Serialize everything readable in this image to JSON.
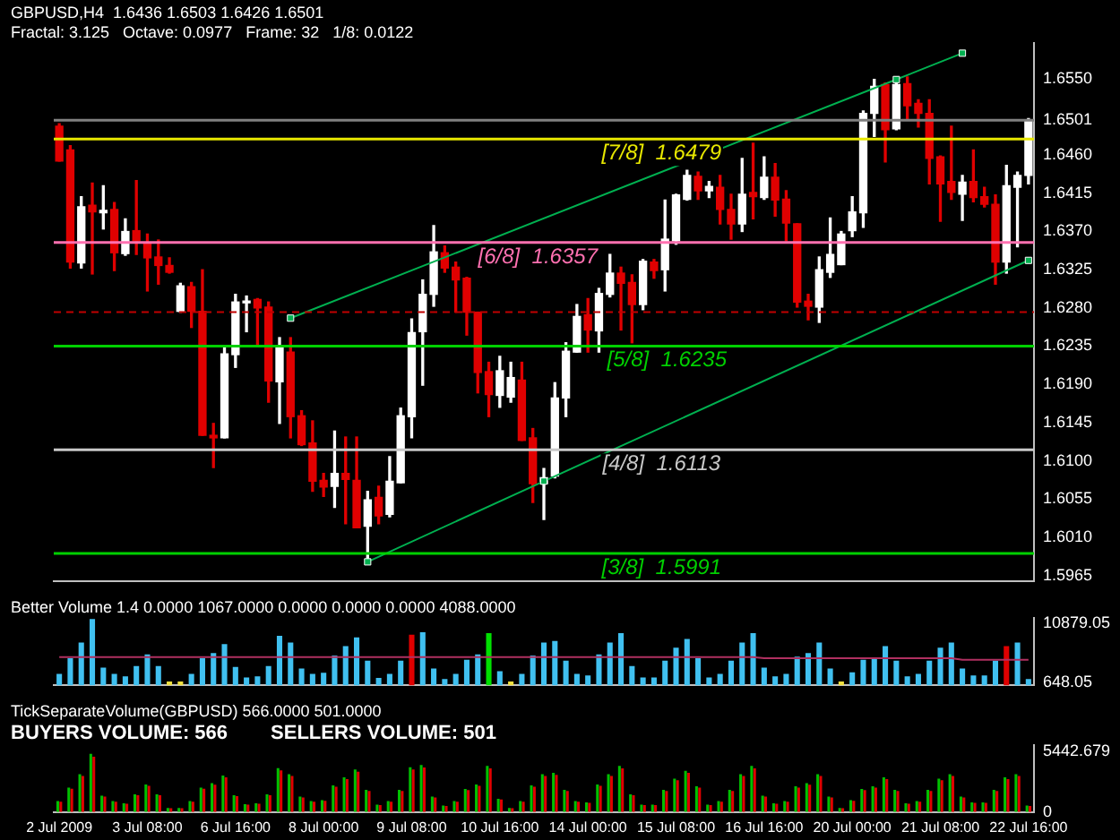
{
  "chart_data": [
    {
      "type": "candlestick",
      "title": "GBPUSD,H4  1.6436 1.6503 1.6426 1.6501",
      "subtitle": "Fractal: 3.125   Octave: 0.0977   Frame: 32   1/8: 0.0122",
      "ohlc": [
        [
          1.6494,
          1.6497,
          1.6453,
          1.6453
        ],
        [
          1.6466,
          1.6471,
          1.6327,
          1.6334
        ],
        [
          1.6333,
          1.6411,
          1.6327,
          1.6399
        ],
        [
          1.6401,
          1.6427,
          1.632,
          1.6393
        ],
        [
          1.6392,
          1.6424,
          1.6373,
          1.6395
        ],
        [
          1.6396,
          1.6404,
          1.6324,
          1.6345
        ],
        [
          1.6344,
          1.6385,
          1.6342,
          1.637
        ],
        [
          1.6371,
          1.643,
          1.6343,
          1.6359
        ],
        [
          1.6357,
          1.6367,
          1.63,
          1.6339
        ],
        [
          1.634,
          1.636,
          1.6308,
          1.633
        ],
        [
          1.633,
          1.6339,
          1.6321,
          1.6322
        ],
        [
          1.6276,
          1.6309,
          1.6275,
          1.6306
        ],
        [
          1.6305,
          1.631,
          1.6257,
          1.6276
        ],
        [
          1.6276,
          1.6325,
          1.613,
          1.613
        ],
        [
          1.613,
          1.6144,
          1.6092,
          1.6127
        ],
        [
          1.6127,
          1.6235,
          1.6127,
          1.6226
        ],
        [
          1.6225,
          1.6296,
          1.621,
          1.6287
        ],
        [
          1.6286,
          1.6294,
          1.6252,
          1.6288
        ],
        [
          1.629,
          1.6291,
          1.6236,
          1.628
        ],
        [
          1.6281,
          1.6287,
          1.6169,
          1.6194
        ],
        [
          1.6193,
          1.6245,
          1.6144,
          1.6235
        ],
        [
          1.6228,
          1.6245,
          1.6127,
          1.6152
        ],
        [
          1.6153,
          1.6159,
          1.6118,
          1.6119
        ],
        [
          1.6121,
          1.6147,
          1.6064,
          1.6076
        ],
        [
          1.6077,
          1.6085,
          1.6058,
          1.6069
        ],
        [
          1.607,
          1.6135,
          1.6045,
          1.6085
        ],
        [
          1.6085,
          1.6128,
          1.6026,
          1.6078
        ],
        [
          1.6077,
          1.6128,
          1.6021,
          1.6021
        ],
        [
          1.6023,
          1.6064,
          1.5981,
          1.6054
        ],
        [
          1.6057,
          1.607,
          1.6026,
          1.6035
        ],
        [
          1.6037,
          1.6105,
          1.6034,
          1.6076
        ],
        [
          1.6074,
          1.6162,
          1.6074,
          1.6153
        ],
        [
          1.6152,
          1.6267,
          1.6127,
          1.6251
        ],
        [
          1.6252,
          1.6313,
          1.6189,
          1.6296
        ],
        [
          1.6296,
          1.6377,
          1.6282,
          1.6346
        ],
        [
          1.6345,
          1.6353,
          1.6322,
          1.6327
        ],
        [
          1.6328,
          1.6334,
          1.6275,
          1.6313
        ],
        [
          1.6315,
          1.6316,
          1.6248,
          1.6275
        ],
        [
          1.6275,
          1.6275,
          1.618,
          1.6204
        ],
        [
          1.6205,
          1.6216,
          1.6152,
          1.6178
        ],
        [
          1.6177,
          1.6223,
          1.6163,
          1.6206
        ],
        [
          1.6175,
          1.6216,
          1.6169,
          1.6198
        ],
        [
          1.6195,
          1.6216,
          1.6124,
          1.6124
        ],
        [
          1.6127,
          1.6138,
          1.6051,
          1.6073
        ],
        [
          1.6073,
          1.6091,
          1.6031,
          1.608
        ],
        [
          1.6082,
          1.6192,
          1.608,
          1.6174
        ],
        [
          1.6174,
          1.6239,
          1.6152,
          1.6229
        ],
        [
          1.6228,
          1.6284,
          1.6228,
          1.627
        ],
        [
          1.6272,
          1.6291,
          1.6228,
          1.6254
        ],
        [
          1.6253,
          1.6303,
          1.6228,
          1.6297
        ],
        [
          1.6296,
          1.6343,
          1.6293,
          1.6321
        ],
        [
          1.6321,
          1.6328,
          1.6254,
          1.6309
        ],
        [
          1.631,
          1.6319,
          1.6239,
          1.6284
        ],
        [
          1.6284,
          1.6337,
          1.6278,
          1.6335
        ],
        [
          1.6334,
          1.6337,
          1.6315,
          1.6324
        ],
        [
          1.6325,
          1.6407,
          1.63,
          1.6361
        ],
        [
          1.6359,
          1.6414,
          1.6355,
          1.6413
        ],
        [
          1.6408,
          1.6442,
          1.6407,
          1.6436
        ],
        [
          1.6435,
          1.644,
          1.6408,
          1.6418
        ],
        [
          1.6418,
          1.6429,
          1.641,
          1.6423
        ],
        [
          1.6422,
          1.6436,
          1.6379,
          1.6396
        ],
        [
          1.6396,
          1.6414,
          1.6361,
          1.6379
        ],
        [
          1.6379,
          1.6456,
          1.637,
          1.6414
        ],
        [
          1.6416,
          1.6474,
          1.6385,
          1.6411
        ],
        [
          1.641,
          1.6458,
          1.6408,
          1.6434
        ],
        [
          1.6434,
          1.645,
          1.6388,
          1.6407
        ],
        [
          1.6408,
          1.6418,
          1.6359,
          1.638
        ],
        [
          1.6379,
          1.6379,
          1.6281,
          1.6287
        ],
        [
          1.6288,
          1.6296,
          1.6266,
          1.6282
        ],
        [
          1.6281,
          1.634,
          1.6263,
          1.6325
        ],
        [
          1.6322,
          1.6386,
          1.6316,
          1.6343
        ],
        [
          1.6331,
          1.637,
          1.6331,
          1.6367
        ],
        [
          1.6371,
          1.6411,
          1.6364,
          1.6393
        ],
        [
          1.6392,
          1.6512,
          1.6375,
          1.6509
        ],
        [
          1.6509,
          1.6549,
          1.6482,
          1.6541
        ],
        [
          1.6543,
          1.6545,
          1.6452,
          1.649
        ],
        [
          1.6491,
          1.6552,
          1.649,
          1.6543
        ],
        [
          1.6544,
          1.6552,
          1.6503,
          1.6518
        ],
        [
          1.6521,
          1.6525,
          1.6493,
          1.6509
        ],
        [
          1.6509,
          1.6525,
          1.6426,
          1.6456
        ],
        [
          1.6458,
          1.6459,
          1.6382,
          1.6426
        ],
        [
          1.6429,
          1.6494,
          1.6408,
          1.6416
        ],
        [
          1.6414,
          1.6436,
          1.6383,
          1.6428
        ],
        [
          1.6429,
          1.6466,
          1.6405,
          1.641
        ],
        [
          1.6411,
          1.6422,
          1.6399,
          1.6402
        ],
        [
          1.6402,
          1.6413,
          1.6308,
          1.6334
        ],
        [
          1.6334,
          1.6448,
          1.6321,
          1.6424
        ],
        [
          1.6422,
          1.644,
          1.6352,
          1.6436
        ],
        [
          1.6436,
          1.6503,
          1.6426,
          1.6501
        ]
      ],
      "colors": [
        "#e00000",
        "#e00000",
        "#ffffff",
        "#e00000",
        "#ffffff",
        "#e00000",
        "#ffffff",
        "#e00000",
        "#e00000",
        "#e00000",
        "#e00000",
        "#ffffff",
        "#e00000",
        "#e00000",
        "#e00000",
        "#ffffff",
        "#ffffff",
        "#ffffff",
        "#e00000",
        "#e00000",
        "#ffffff",
        "#e00000",
        "#e00000",
        "#e00000",
        "#e00000",
        "#ffffff",
        "#e00000",
        "#e00000",
        "#ffffff",
        "#e00000",
        "#ffffff",
        "#ffffff",
        "#ffffff",
        "#ffffff",
        "#ffffff",
        "#e00000",
        "#e00000",
        "#e00000",
        "#e00000",
        "#e00000",
        "#ffffff",
        "#ffffff",
        "#e00000",
        "#e00000",
        "#ffffff",
        "#ffffff",
        "#ffffff",
        "#ffffff",
        "#e00000",
        "#ffffff",
        "#ffffff",
        "#e00000",
        "#e00000",
        "#ffffff",
        "#e00000",
        "#ffffff",
        "#ffffff",
        "#ffffff",
        "#e00000",
        "#ffffff",
        "#e00000",
        "#e00000",
        "#ffffff",
        "#e00000",
        "#ffffff",
        "#e00000",
        "#e00000",
        "#e00000",
        "#e00000",
        "#ffffff",
        "#ffffff",
        "#ffffff",
        "#ffffff",
        "#ffffff",
        "#ffffff",
        "#e00000",
        "#ffffff",
        "#e00000",
        "#e00000",
        "#e00000",
        "#e00000",
        "#e00000",
        "#ffffff",
        "#e00000",
        "#e00000",
        "#e00000",
        "#ffffff",
        "#ffffff",
        "#ffffff"
      ],
      "series": [
        {
          "type": "line",
          "color": "#00b050",
          "values": [
            null,
            null,
            null,
            null,
            null,
            null,
            null,
            null,
            null,
            null,
            null,
            null,
            null,
            null,
            null,
            null,
            null,
            null,
            null,
            null,
            null,
            1.6268,
            null,
            null,
            null,
            null,
            null,
            null,
            null,
            null,
            null,
            null,
            null,
            null,
            null,
            null,
            null,
            null,
            null,
            null,
            null,
            null,
            null,
            null,
            null,
            null,
            null,
            null,
            null,
            null,
            null,
            null,
            null,
            null,
            null,
            null,
            null,
            null,
            null,
            null,
            null,
            null,
            null,
            null,
            null,
            null,
            null,
            null,
            null,
            null,
            null,
            null,
            null,
            null,
            null,
            null,
            1.6549,
            null,
            null,
            null,
            null,
            null,
            1.658,
            null,
            null,
            null,
            null,
            null,
            null
          ]
        },
        {
          "type": "line",
          "color": "#00b050",
          "values": [
            null,
            null,
            null,
            null,
            null,
            null,
            null,
            null,
            null,
            null,
            null,
            null,
            null,
            null,
            null,
            null,
            null,
            null,
            null,
            null,
            null,
            null,
            null,
            null,
            null,
            null,
            null,
            null,
            1.5981,
            null,
            null,
            null,
            null,
            null,
            null,
            null,
            null,
            null,
            null,
            null,
            null,
            null,
            null,
            null,
            1.6076,
            null,
            null,
            null,
            null,
            null,
            null,
            null,
            null,
            null,
            null,
            null,
            null,
            null,
            null,
            null,
            null,
            null,
            null,
            null,
            null,
            null,
            null,
            null,
            null,
            null,
            null,
            null,
            null,
            null,
            null,
            null,
            null,
            null,
            null,
            null,
            null,
            null,
            null,
            null,
            null,
            null,
            null,
            null,
            1.6336
          ]
        }
      ],
      "marker": "square",
      "ylim": [
        1.5958,
        1.6592
      ],
      "yticks": [
        1.5965,
        {
          "value": 1.601,
          "label": "1.6010"
        },
        1.6055,
        {
          "value": 1.61,
          "label": "1.6100"
        },
        1.6145,
        {
          "value": 1.619,
          "label": "1.6190"
        },
        1.6235,
        {
          "value": 1.628,
          "label": "1.6280"
        },
        1.6325,
        {
          "value": 1.637,
          "label": "1.6370"
        },
        1.6415,
        {
          "value": 1.646,
          "label": "1.6460"
        },
        1.6501,
        {
          "value": 1.655,
          "label": "1.6550"
        }
      ],
      "ref_lines": [
        {
          "axis": "y",
          "value": 1.6479,
          "label": "[7/8]  1.6479",
          "color": "#e8e800"
        },
        {
          "axis": "y",
          "value": 1.6357,
          "label": "[6/8]  1.6357",
          "color": "#ff70b0"
        },
        {
          "axis": "y",
          "value": 1.6275,
          "color": "#c00000",
          "line_style": "dashed"
        },
        {
          "axis": "y",
          "value": 1.6235,
          "label": "[5/8]  1.6235",
          "color": "#00d000"
        },
        {
          "axis": "y",
          "value": 1.6113,
          "label": "[4/8]  1.6113",
          "color": "#c8c8c8"
        },
        {
          "axis": "y",
          "value": 1.5991,
          "label": "[3/8]  1.5991",
          "color": "#00d000"
        },
        {
          "axis": "y",
          "value": 1.6501,
          "color": "#808080"
        }
      ],
      "tick_labels": "y"
    },
    {
      "type": "bar",
      "title": "Better Volume 1.4 0.0000 1067.0000 0.0000 0.0000 0.0000 4088.0000",
      "series": [
        {
          "type": "bar",
          "values": [
            2170,
            4870,
            7560,
            11600,
            3250,
            2170,
            1730,
            3520,
            5500,
            3520,
            830,
            830,
            2170,
            4870,
            5760,
            7290,
            3340,
            1550,
            1730,
            3520,
            8730,
            7560,
            3070,
            2170,
            2350,
            5320,
            6930,
            8460,
            4420,
            1460,
            2170,
            4420,
            8910,
            9350,
            3070,
            1280,
            2170,
            4600,
            5500,
            9170,
            2620,
            830,
            2170,
            5320,
            7560,
            7830,
            4420,
            2170,
            1900,
            5500,
            7560,
            9170,
            3520,
            1550,
            1550,
            4420,
            6660,
            8190,
            4870,
            1550,
            2170,
            4420,
            7560,
            9170,
            3250,
            1730,
            2170,
            5140,
            5760,
            7560,
            3070,
            830,
            2440,
            4600,
            4870,
            6930,
            4420,
            1730,
            2170,
            4420,
            6660,
            7560,
            3070,
            1900,
            1900,
            4420,
            6930,
            7560,
            1280
          ],
          "colors": [
            "#40c0f0",
            "#40c0f0",
            "#40c0f0",
            "#40c0f0",
            "#40c0f0",
            "#40c0f0",
            "#40c0f0",
            "#40c0f0",
            "#40c0f0",
            "#40c0f0",
            "#f0e040",
            "#f0e040",
            "#40c0f0",
            "#40c0f0",
            "#40c0f0",
            "#40c0f0",
            "#40c0f0",
            "#40c0f0",
            "#40c0f0",
            "#40c0f0",
            "#40c0f0",
            "#40c0f0",
            "#40c0f0",
            "#40c0f0",
            "#40c0f0",
            "#40c0f0",
            "#40c0f0",
            "#40c0f0",
            "#40c0f0",
            "#40c0f0",
            "#40c0f0",
            "#40c0f0",
            "#e00000",
            "#40c0f0",
            "#40c0f0",
            "#40c0f0",
            "#40c0f0",
            "#40c0f0",
            "#40c0f0",
            "#00e000",
            "#40c0f0",
            "#f0e040",
            "#40c0f0",
            "#40c0f0",
            "#40c0f0",
            "#40c0f0",
            "#40c0f0",
            "#40c0f0",
            "#40c0f0",
            "#40c0f0",
            "#40c0f0",
            "#40c0f0",
            "#40c0f0",
            "#40c0f0",
            "#40c0f0",
            "#40c0f0",
            "#40c0f0",
            "#40c0f0",
            "#40c0f0",
            "#40c0f0",
            "#40c0f0",
            "#40c0f0",
            "#40c0f0",
            "#40c0f0",
            "#40c0f0",
            "#40c0f0",
            "#40c0f0",
            "#40c0f0",
            "#40c0f0",
            "#40c0f0",
            "#40c0f0",
            "#f0e040",
            "#40c0f0",
            "#40c0f0",
            "#40c0f0",
            "#40c0f0",
            "#40c0f0",
            "#40c0f0",
            "#40c0f0",
            "#40c0f0",
            "#40c0f0",
            "#40c0f0",
            "#40c0f0",
            "#40c0f0",
            "#40c0f0",
            "#40c0f0",
            "#e00000",
            "#40c0f0",
            "#40c0f0"
          ]
        },
        {
          "type": "line",
          "color": "#b03060",
          "values": [
            5050,
            5050,
            5050,
            5050,
            5050,
            5050,
            5050,
            5050,
            5050,
            5050,
            5050,
            5050,
            5050,
            5050,
            5050,
            5050,
            5050,
            5050,
            5050,
            5050,
            5050,
            5050,
            5050,
            5050,
            5050,
            5050,
            5050,
            5050,
            5050,
            5050,
            5050,
            5050,
            5050,
            5050,
            5050,
            5050,
            5050,
            5050,
            5050,
            5050,
            5050,
            5050,
            5050,
            5050,
            5050,
            5050,
            5050,
            5050,
            5050,
            5050,
            5050,
            5050,
            5050,
            5050,
            5050,
            5050,
            5050,
            5050,
            5050,
            5050,
            5050,
            5050,
            5050,
            5050,
            4870,
            4870,
            4870,
            4870,
            4870,
            4870,
            4870,
            4870,
            4870,
            4870,
            4870,
            4870,
            4870,
            4870,
            4870,
            4870,
            4870,
            4870,
            4600,
            4600,
            4600,
            4600,
            4600,
            4600,
            4600
          ]
        }
      ],
      "marker": "none",
      "ylim": [
        200,
        11800
      ],
      "yticks": [
        {
          "value": 648.05,
          "label": "648.05"
        },
        {
          "value": 10879.05,
          "label": "10879.05"
        }
      ],
      "tick_labels": "y"
    },
    {
      "type": "bar",
      "title": "TickSeparateVolume(GBPUSD) 566.0000 501.0000",
      "annotations": [
        "BUYERS VOLUME: 566",
        "SELLERS VOLUME: 501"
      ],
      "categories": [
        "2 Jul 2009",
        null,
        null,
        null,
        null,
        null,
        null,
        null,
        "3 Jul 08:00",
        null,
        null,
        null,
        null,
        null,
        null,
        null,
        "6 Jul 16:00",
        null,
        null,
        null,
        null,
        null,
        null,
        null,
        "8 Jul 00:00",
        null,
        null,
        null,
        null,
        null,
        null,
        null,
        "9 Jul 08:00",
        null,
        null,
        null,
        null,
        null,
        null,
        null,
        "10 Jul 16:00",
        null,
        null,
        null,
        null,
        null,
        null,
        null,
        "14 Jul 00:00",
        null,
        null,
        null,
        null,
        null,
        null,
        null,
        "15 Jul 08:00",
        null,
        null,
        null,
        null,
        null,
        null,
        null,
        "16 Jul 16:00",
        null,
        null,
        null,
        null,
        null,
        null,
        null,
        "20 Jul 00:00",
        null,
        null,
        null,
        null,
        null,
        null,
        null,
        "21 Jul 08:00",
        null,
        null,
        null,
        null,
        null,
        null,
        null,
        "22 Jul 16:00"
      ],
      "series": [
        {
          "color": "#00c000",
          "values": [
            980,
            2190,
            3400,
            5220,
            1460,
            980,
            780,
            1580,
            2480,
            1580,
            370,
            370,
            980,
            2190,
            2590,
            3280,
            1500,
            700,
            780,
            1580,
            3930,
            3400,
            1380,
            980,
            1060,
            2390,
            3120,
            3810,
            1990,
            660,
            980,
            1990,
            4010,
            4210,
            1380,
            580,
            980,
            2070,
            2480,
            4130,
            1180,
            370,
            980,
            2390,
            3400,
            3520,
            1990,
            980,
            860,
            2480,
            3400,
            4130,
            1580,
            660,
            660,
            1990,
            3000,
            3690,
            2310,
            660,
            980,
            1990,
            3400,
            4130,
            1460,
            780,
            980,
            2310,
            2590,
            3400,
            1380,
            370,
            1060,
            2070,
            2310,
            3120,
            1990,
            780,
            980,
            1990,
            3000,
            3400,
            1380,
            860,
            860,
            1990,
            3120,
            3400,
            580
          ]
        },
        {
          "color": "#e00000",
          "values": [
            930,
            2080,
            3230,
            4960,
            1390,
            930,
            740,
            1500,
            2360,
            1500,
            350,
            350,
            930,
            2080,
            2460,
            3120,
            1430,
            670,
            740,
            1500,
            3730,
            3230,
            1310,
            930,
            1010,
            2270,
            2960,
            3620,
            1890,
            630,
            930,
            1890,
            3810,
            4000,
            1310,
            550,
            930,
            1970,
            2360,
            3920,
            1120,
            350,
            930,
            2270,
            3230,
            3340,
            1890,
            930,
            820,
            2360,
            3230,
            3920,
            1500,
            630,
            630,
            1890,
            2850,
            3510,
            2190,
            630,
            930,
            1890,
            3230,
            3920,
            1390,
            740,
            930,
            2190,
            2460,
            3230,
            1310,
            350,
            1010,
            1970,
            2190,
            2960,
            1890,
            740,
            930,
            1890,
            2850,
            3230,
            1310,
            820,
            820,
            1890,
            2960,
            3230,
            550
          ]
        }
      ],
      "ylim": [
        0,
        6000
      ],
      "yticks": [
        0,
        {
          "value": 5442.679,
          "label": "5442.679"
        }
      ]
    }
  ]
}
